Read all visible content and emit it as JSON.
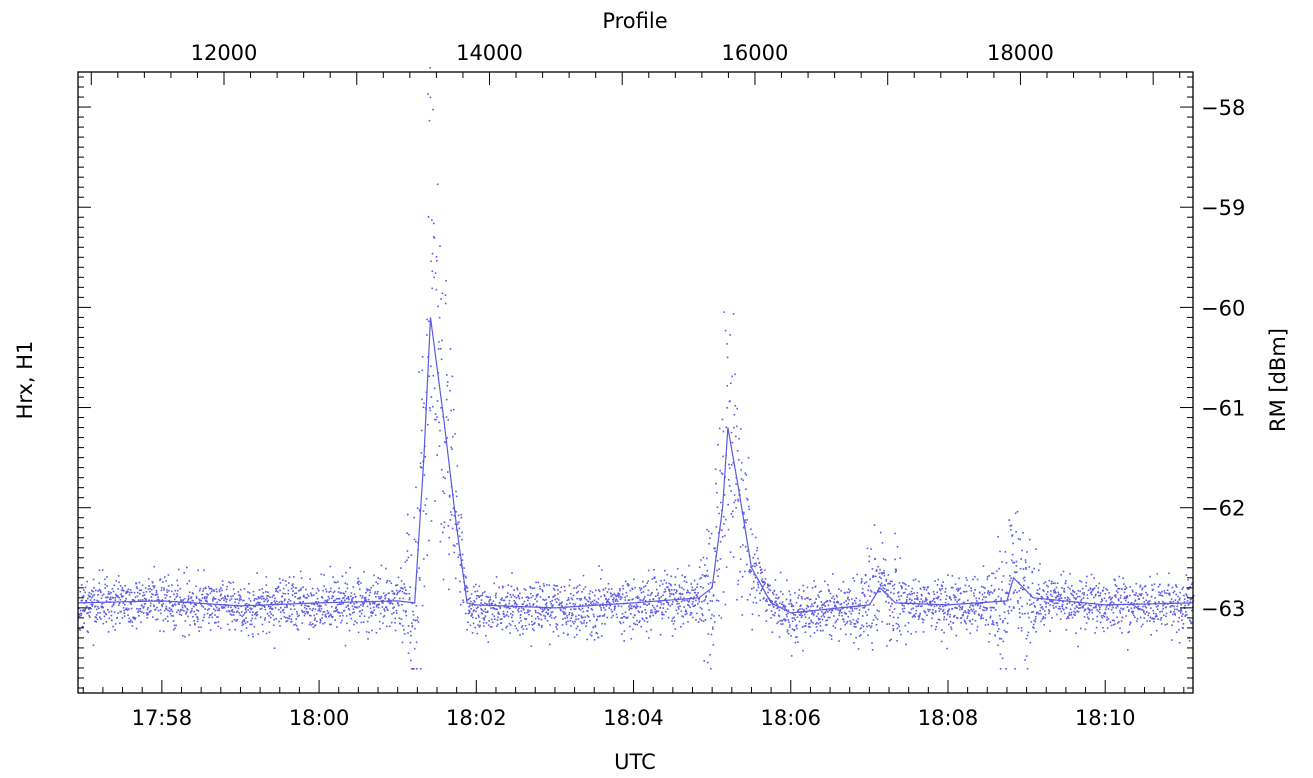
{
  "chart_data": {
    "type": "scatter",
    "title": "",
    "xlabel": "UTC",
    "x2label": "Profile",
    "ylabel_left": "Hrx, H1",
    "ylabel_right": "RM [dBm]",
    "x_range": [
      "17:56:56",
      "18:11:07"
    ],
    "x_tick_labels": [
      "17:58",
      "18:00",
      "18:02",
      "18:04",
      "18:06",
      "18:08",
      "18:10"
    ],
    "x2_range": [
      10900,
      19300
    ],
    "x2_tick_labels": [
      "12000",
      "14000",
      "16000",
      "18000"
    ],
    "ylim": [
      -63.85,
      -57.65
    ],
    "y_tick_labels": [
      "-58",
      "-59",
      "-60",
      "-61",
      "-62",
      "-63"
    ],
    "grid": false,
    "colors": {
      "series": "#5a5ae6",
      "axes": "#000000"
    },
    "series": [
      {
        "style": "dots",
        "description_source": "scattered samples around a running mean",
        "baseline_dBm": -62.95,
        "noise_std_dBm": 0.13,
        "peaks": [
          {
            "time": "18:01:25",
            "max_dBm": -57.85,
            "mean_dBm": -60.1
          },
          {
            "time": "18:05:12",
            "max_dBm": -60.0,
            "mean_dBm": -61.2
          },
          {
            "time": "18:07:08",
            "max_dBm": -62.5,
            "mean_dBm": -62.85
          },
          {
            "time": "18:08:50",
            "max_dBm": -62.1,
            "mean_dBm": -62.7
          }
        ]
      },
      {
        "style": "line",
        "x": [
          "17:56:56",
          "17:58:00",
          "17:59:00",
          "18:00:00",
          "18:01:00",
          "18:01:13",
          "18:01:20",
          "18:01:25",
          "18:01:35",
          "18:01:45",
          "18:01:53",
          "18:02:00",
          "18:03:00",
          "18:04:00",
          "18:04:50",
          "18:05:00",
          "18:05:08",
          "18:05:12",
          "18:05:20",
          "18:05:30",
          "18:05:45",
          "18:06:00",
          "18:07:00",
          "18:07:08",
          "18:07:20",
          "18:08:00",
          "18:08:45",
          "18:08:50",
          "18:09:05",
          "18:10:00",
          "18:11:07"
        ],
        "y": [
          -62.95,
          -62.93,
          -62.98,
          -62.95,
          -62.93,
          -62.95,
          -61.5,
          -60.1,
          -61.1,
          -62.2,
          -62.95,
          -62.97,
          -63.0,
          -62.95,
          -62.9,
          -62.8,
          -62.0,
          -61.2,
          -61.8,
          -62.6,
          -62.95,
          -63.05,
          -62.97,
          -62.8,
          -62.95,
          -62.97,
          -62.93,
          -62.7,
          -62.9,
          -62.97,
          -62.95
        ]
      }
    ]
  }
}
